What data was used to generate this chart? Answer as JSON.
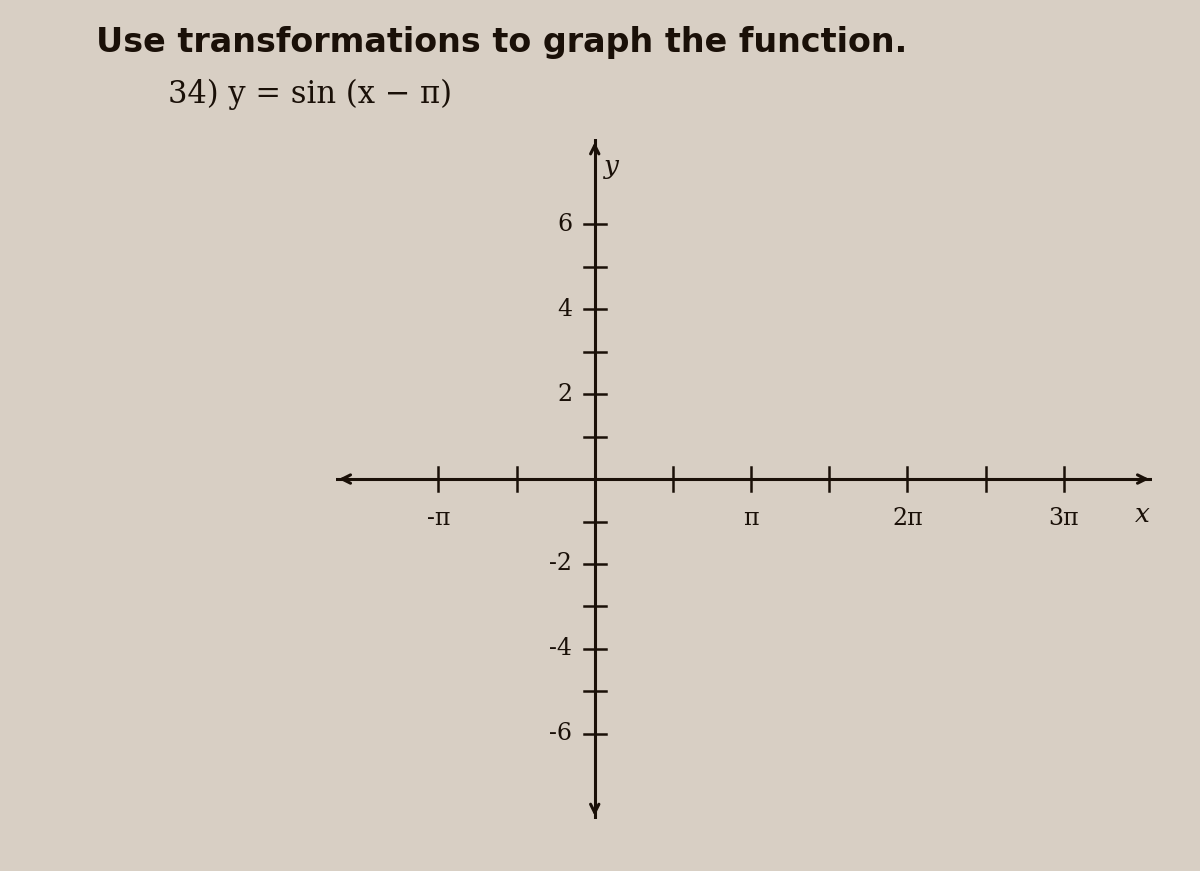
{
  "title_line1": "Use transformations to graph the function.",
  "title_line2": "34) y = sin (x − π)",
  "background_color": "#d8cfc4",
  "axis_color": "#1a1008",
  "text_color": "#1a1008",
  "xlim": [
    -5.2,
    11.2
  ],
  "ylim": [
    -8.0,
    8.0
  ],
  "yticks": [
    -6,
    -5,
    -4,
    -3,
    -2,
    -1,
    1,
    2,
    3,
    4,
    5,
    6
  ],
  "ytick_labels_shown": [
    -6,
    -4,
    -2,
    2,
    4,
    6
  ],
  "xtick_positions": [
    -3.14159265,
    -1.5707963,
    0,
    1.5707963,
    3.14159265,
    4.712389,
    6.2831853,
    7.8539816,
    9.42477796
  ],
  "xtick_labels_map": {
    "-3.14159265": "-π",
    "3.14159265": "π",
    "6.28318530": "2π",
    "9.42477796": "3π"
  },
  "ylabel_text": "y",
  "xlabel_text": "x",
  "title_fontsize": 24,
  "subtitle_fontsize": 22,
  "tick_label_fontsize": 17,
  "axis_label_fontsize": 19,
  "fig_width": 12.0,
  "fig_height": 8.71
}
